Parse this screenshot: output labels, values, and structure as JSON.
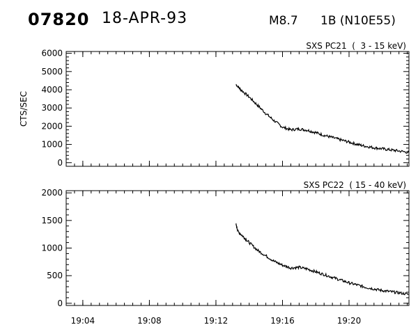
{
  "header": {
    "flare_number": "07820",
    "date": "18-APR-93",
    "goes_class": "M8.7",
    "optical_class_location": "1B (N10E55)"
  },
  "chart_data": [
    {
      "type": "line",
      "title": "SXS PC21  (  3 - 15 keV)",
      "ylabel": "CTS/SEC",
      "xlabel": "",
      "xlim": [
        "19:03:00",
        "19:23:36"
      ],
      "ylim": [
        -200,
        6100
      ],
      "yticks": [
        0,
        1000,
        2000,
        3000,
        4000,
        5000,
        6000
      ],
      "series": [
        {
          "x": [
            "19:13:12",
            "19:13:30",
            "19:14:00",
            "19:14:30",
            "19:15:00",
            "19:15:30",
            "19:16:00",
            "19:16:30",
            "19:17:00",
            "19:17:30",
            "19:18:00",
            "19:18:30",
            "19:19:00",
            "19:19:30",
            "19:20:00",
            "19:20:30",
            "19:21:00",
            "19:21:30",
            "19:22:00",
            "19:22:30",
            "19:23:00",
            "19:23:36"
          ],
          "y": [
            4300,
            4000,
            3600,
            3150,
            2700,
            2300,
            1950,
            1800,
            1850,
            1780,
            1650,
            1500,
            1380,
            1250,
            1130,
            1000,
            900,
            820,
            760,
            700,
            640,
            560
          ]
        }
      ]
    },
    {
      "type": "line",
      "title": "SXS PC22  ( 15 - 40 keV)",
      "ylabel": "",
      "xlabel": "",
      "xlim": [
        "19:03:00",
        "19:23:36"
      ],
      "ylim": [
        -40,
        2040
      ],
      "yticks": [
        0,
        500,
        1000,
        1500,
        2000
      ],
      "xticks": [
        "19:04",
        "19:08",
        "19:12",
        "19:16",
        "19:20"
      ],
      "series": [
        {
          "x": [
            "19:13:12",
            "19:13:20",
            "19:13:40",
            "19:14:00",
            "19:14:30",
            "19:15:00",
            "19:15:30",
            "19:16:00",
            "19:16:30",
            "19:17:00",
            "19:17:30",
            "19:18:00",
            "19:18:30",
            "19:19:00",
            "19:19:30",
            "19:20:00",
            "19:20:30",
            "19:21:00",
            "19:21:30",
            "19:22:00",
            "19:22:30",
            "19:23:00",
            "19:23:36"
          ],
          "y": [
            1430,
            1300,
            1200,
            1100,
            960,
            860,
            760,
            690,
            640,
            650,
            620,
            570,
            520,
            470,
            420,
            370,
            330,
            290,
            260,
            230,
            210,
            190,
            160
          ]
        }
      ]
    }
  ]
}
